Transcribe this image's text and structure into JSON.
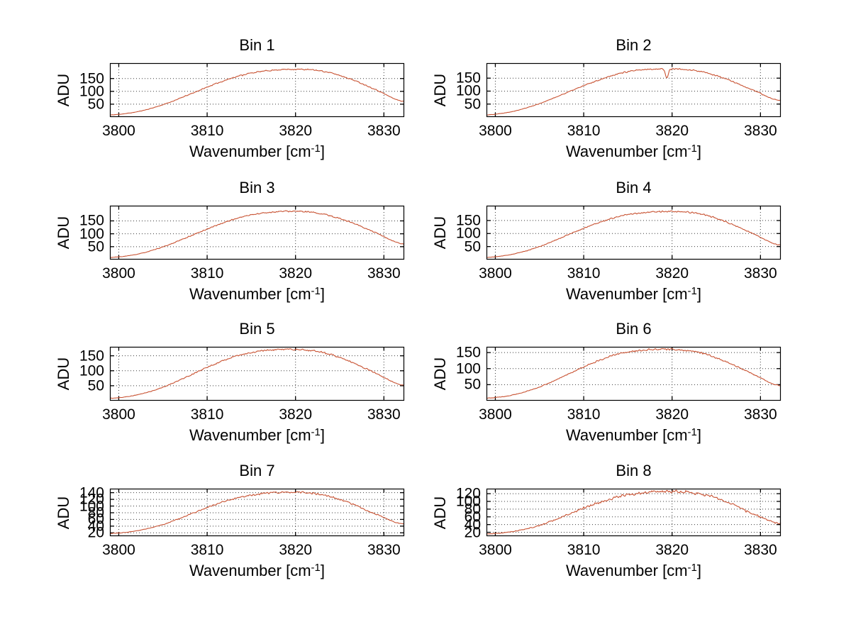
{
  "figure": {
    "background": "#ffffff",
    "kind": "matlab-style multi-panel spectrum figure"
  },
  "chart_data": {
    "type": "line",
    "layout": {
      "rows": 4,
      "cols": 2,
      "order": "row-major",
      "grid": "dotted",
      "legend": "none"
    },
    "xlabel": "Wavenumber [cm⁻¹]",
    "xlabel_parts": {
      "pre": "Wavenumber [cm",
      "sup": "-1",
      "post": "]"
    },
    "ylabel": "ADU",
    "xlim": [
      3799,
      3832.3
    ],
    "xticks": [
      3800,
      3810,
      3820,
      3830
    ],
    "line_color": "#c85232",
    "grid_color": "#3a3a3a",
    "axis_color": "#000000",
    "control_points_x": [
      3799,
      3802,
      3805,
      3808,
      3811,
      3814,
      3817,
      3820,
      3823,
      3826,
      3829,
      3832
    ],
    "bins": [
      {
        "title": "Bin 1",
        "yticks": [
          50,
          100,
          150
        ],
        "ylim": [
          0,
          210
        ],
        "values": [
          8,
          20,
          48,
          88,
          130,
          164,
          181,
          186,
          179,
          151,
          108,
          62
        ],
        "noise": 1.5,
        "seed": 11
      },
      {
        "title": "Bin 2",
        "yticks": [
          50,
          100,
          150
        ],
        "ylim": [
          0,
          208
        ],
        "values": [
          8,
          22,
          52,
          93,
          134,
          168,
          183,
          186,
          177,
          148,
          106,
          65
        ],
        "noise": 1.6,
        "seed": 22,
        "dip": {
          "x": 3819.4,
          "depth": 37,
          "width": 0.22
        }
      },
      {
        "title": "Bin 3",
        "yticks": [
          50,
          100,
          150
        ],
        "ylim": [
          0,
          209
        ],
        "values": [
          8,
          20,
          49,
          90,
          132,
          166,
          183,
          187,
          177,
          148,
          105,
          61
        ],
        "noise": 1.7,
        "seed": 33
      },
      {
        "title": "Bin 4",
        "yticks": [
          50,
          100,
          150
        ],
        "ylim": [
          0,
          207
        ],
        "values": [
          8,
          21,
          50,
          92,
          133,
          166,
          181,
          184,
          177,
          146,
          102,
          57
        ],
        "noise": 1.7,
        "seed": 44
      },
      {
        "title": "Bin 5",
        "yticks": [
          50,
          100,
          150
        ],
        "ylim": [
          0,
          180
        ],
        "values": [
          8,
          19,
          45,
          84,
          124,
          155,
          169,
          171,
          162,
          133,
          93,
          52
        ],
        "noise": 1.6,
        "seed": 55
      },
      {
        "title": "Bin 6",
        "yticks": [
          50,
          100,
          150
        ],
        "ylim": [
          0,
          168
        ],
        "values": [
          8,
          18,
          43,
          80,
          117,
          147,
          158,
          160,
          151,
          123,
          85,
          48
        ],
        "noise": 1.6,
        "seed": 66
      },
      {
        "title": "Bin 7",
        "yticks": [
          20,
          40,
          60,
          80,
          100,
          120,
          140
        ],
        "ylim": [
          10,
          152
        ],
        "values": [
          18,
          26,
          45,
          75,
          105,
          128,
          139,
          141,
          134,
          110,
          77,
          47
        ],
        "noise": 1.7,
        "seed": 77
      },
      {
        "title": "Bin 8",
        "yticks": [
          20,
          40,
          60,
          80,
          100,
          120
        ],
        "ylim": [
          10,
          133
        ],
        "values": [
          16,
          22,
          38,
          64,
          91,
          112,
          123,
          126,
          120,
          101,
          70,
          43
        ],
        "noise": 2.3,
        "seed": 88
      }
    ]
  }
}
